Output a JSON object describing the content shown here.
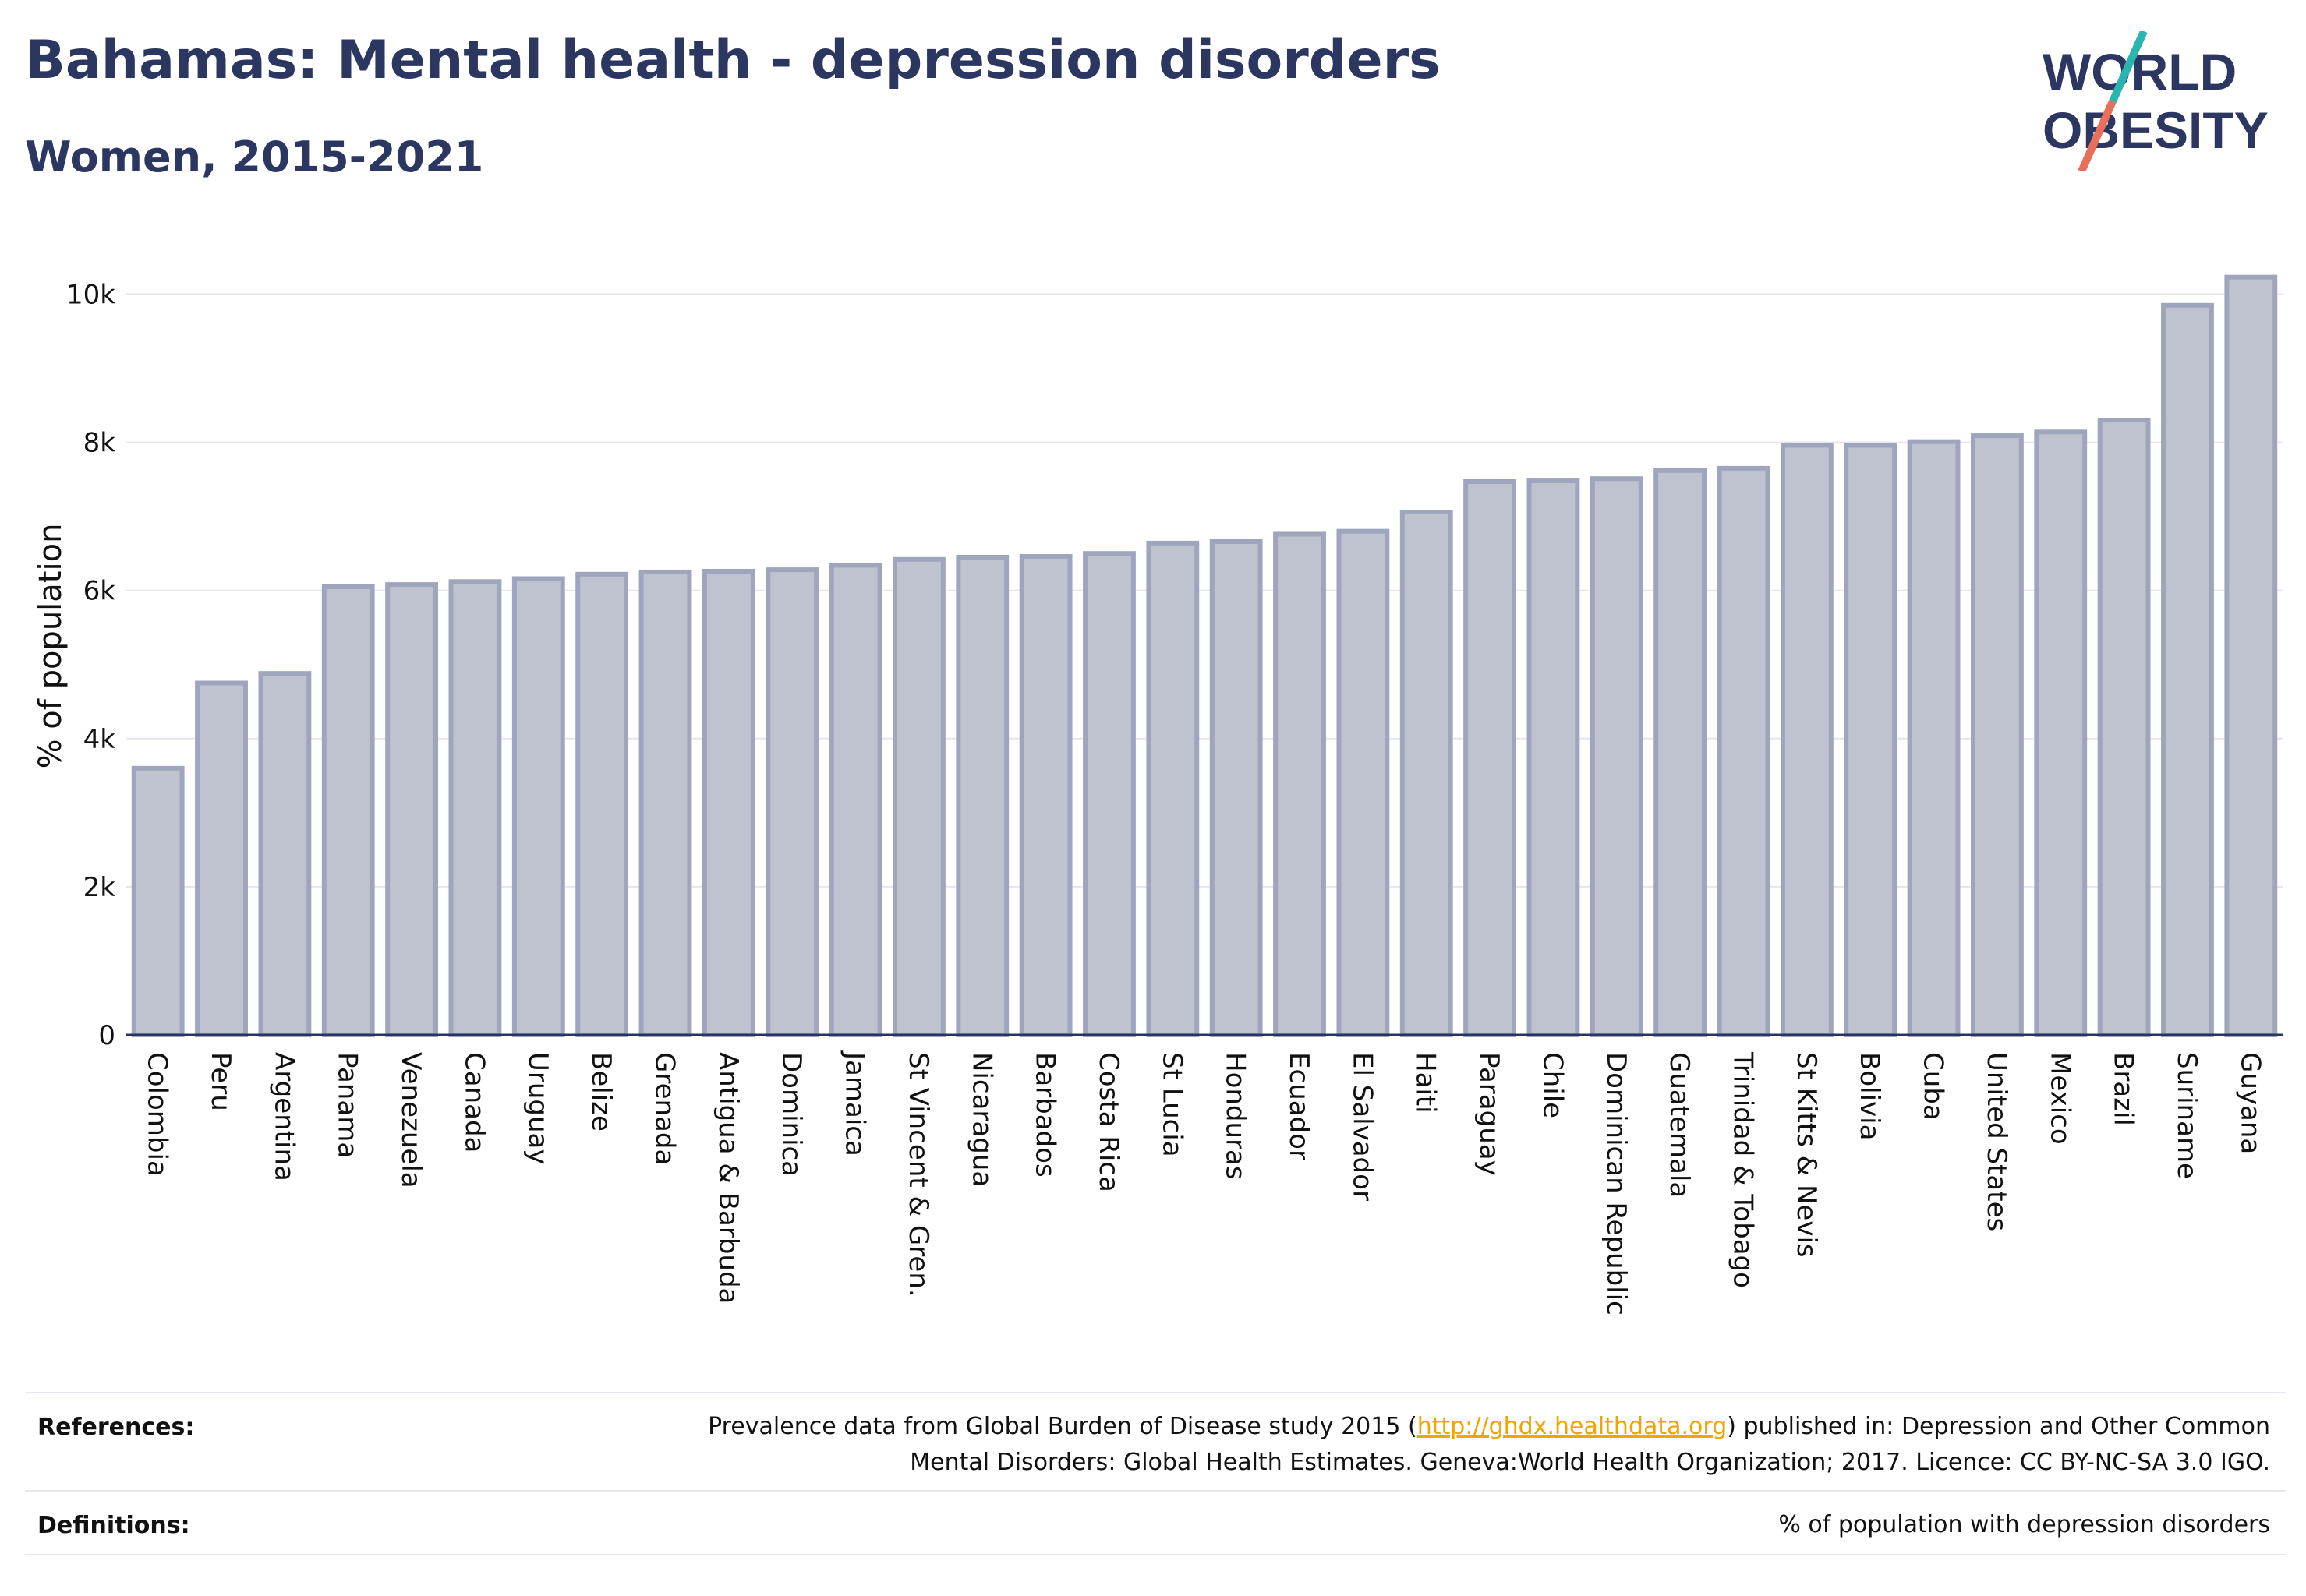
{
  "header": {
    "title": "Bahamas: Mental health - depression disorders",
    "subtitle": "Women, 2015-2021"
  },
  "logo": {
    "line1": "WORLD",
    "line2": "OBESITY",
    "accent_teal": "#2bb5b0",
    "accent_coral": "#e8705a",
    "text_color": "#2b3760"
  },
  "chart_data": {
    "type": "bar",
    "categories": [
      "Colombia",
      "Peru",
      "Argentina",
      "Panama",
      "Venezuela",
      "Canada",
      "Uruguay",
      "Belize",
      "Grenada",
      "Antigua & Barbuda",
      "Dominica",
      "Jamaica",
      "St Vincent & Gren.",
      "Nicaragua",
      "Barbados",
      "Costa Rica",
      "St Lucia",
      "Honduras",
      "Ecuador",
      "El Salvador",
      "Haiti",
      "Paraguay",
      "Chile",
      "Dominican Republic",
      "Guatemala",
      "Trinidad & Tobago",
      "St Kitts & Nevis",
      "Bolivia",
      "Cuba",
      "United States",
      "Mexico",
      "Brazil",
      "Suriname",
      "Guyana"
    ],
    "values": [
      3600,
      4750,
      4880,
      6050,
      6080,
      6120,
      6160,
      6220,
      6250,
      6260,
      6280,
      6340,
      6420,
      6450,
      6460,
      6500,
      6640,
      6660,
      6760,
      6800,
      7060,
      7470,
      7480,
      7510,
      7620,
      7650,
      7960,
      7960,
      8010,
      8090,
      8140,
      8300,
      9850,
      10230
    ],
    "xlabel": "",
    "ylabel": "% of population",
    "ylim": [
      0,
      10500
    ],
    "yticks": [
      0,
      2000,
      4000,
      6000,
      8000,
      10000
    ],
    "ytick_labels": [
      "0",
      "2k",
      "4k",
      "6k",
      "8k",
      "10k"
    ],
    "grid": true,
    "bar_fill": "#bfc3d0",
    "bar_stroke": "#9fa5bd"
  },
  "footer": {
    "references_label": "References:",
    "references_line1_pre": "Prevalence data from Global Burden of Disease study 2015 (",
    "references_link": "http://ghdx.healthdata.org",
    "references_line1_post": ") published in: Depression and Other Common",
    "references_line2": "Mental Disorders: Global Health Estimates. Geneva:World Health Organization; 2017. Licence: CC BY-NC-SA 3.0 IGO.",
    "definitions_label": "Definitions:",
    "definitions_text": "% of population with depression disorders"
  }
}
